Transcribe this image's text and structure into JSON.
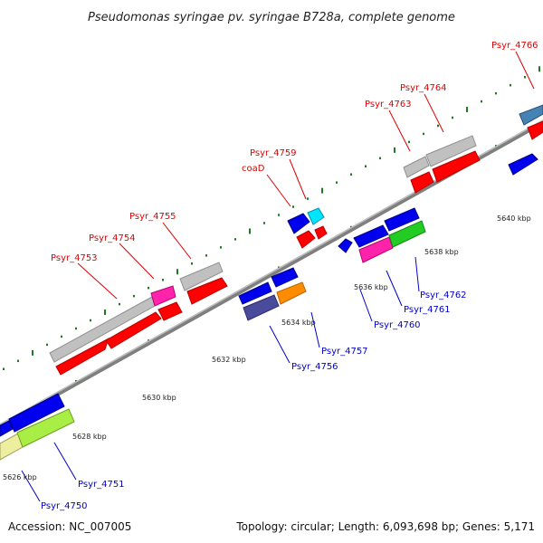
{
  "title": "Pseudomonas syringae pv. syringae B728a, complete genome",
  "footer": {
    "accession": "Accession: NC_007005",
    "summary": "Topology: circular; Length: 6,093,698 bp; Genes: 5,171"
  },
  "colors": {
    "backbone": "#8c8c8c",
    "tick": "#1f7a1f",
    "forward_label": "#e00000",
    "reverse_label": "#0000cc"
  },
  "scale_labels": [
    "5626 kbp",
    "5628 kbp",
    "5630 kbp",
    "5632 kbp",
    "5634 kbp",
    "5636 kbp",
    "5638 kbp",
    "5640 kbp"
  ],
  "gene_labels": {
    "forward": [
      "Psyr_4753",
      "Psyr_4754",
      "Psyr_4755",
      "coaD",
      "Psyr_4759",
      "Psyr_4763",
      "Psyr_4764",
      "Psyr_4766"
    ],
    "reverse": [
      "Psyr_4750",
      "Psyr_4751",
      "Psyr_4756",
      "Psyr_4757",
      "Psyr_4760",
      "Psyr_4761",
      "Psyr_4762"
    ]
  }
}
